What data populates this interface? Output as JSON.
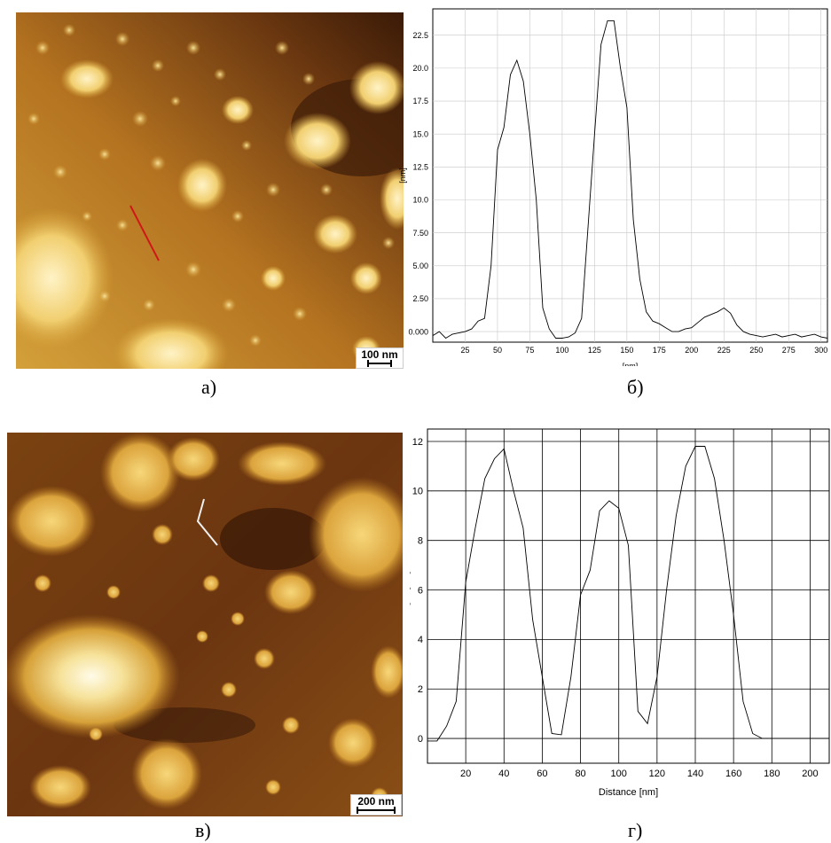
{
  "panels": {
    "a": {
      "caption": "а)",
      "scale_bar": "100 nm"
    },
    "b": {
      "caption": "б)"
    },
    "c": {
      "caption": "в)",
      "scale_bar": "200 nm"
    },
    "d": {
      "caption": "г)"
    }
  },
  "chart_data": [
    {
      "type": "line",
      "panel": "б",
      "xlabel": "[nm]",
      "ylabel": "[nm]",
      "xlim": [
        0,
        305
      ],
      "ylim": [
        -0.8,
        24.5
      ],
      "x_ticks": [
        "25",
        "50",
        "75",
        "100",
        "125",
        "150",
        "175",
        "200",
        "225",
        "250",
        "275",
        "300"
      ],
      "y_ticks": [
        "0.000",
        "2.50",
        "5.00",
        "7.50",
        "10.0",
        "12.5",
        "15.0",
        "17.5",
        "20.0",
        "22.5"
      ],
      "grid": true,
      "series": [
        {
          "x": [
            0,
            5,
            10,
            15,
            20,
            25,
            30,
            35,
            40,
            45,
            50,
            55,
            60,
            65,
            70,
            75,
            80,
            85,
            90,
            95,
            100,
            105,
            110,
            115,
            120,
            125,
            130,
            135,
            140,
            145,
            150,
            155,
            160,
            165,
            170,
            175,
            180,
            185,
            190,
            195,
            200,
            205,
            210,
            215,
            220,
            225,
            230,
            235,
            240,
            245,
            250,
            255,
            260,
            265,
            270,
            275,
            280,
            285,
            290,
            295,
            300,
            305
          ],
          "y": [
            -0.3,
            0,
            -0.5,
            -0.2,
            -0.1,
            0,
            0.2,
            0.8,
            1,
            5,
            13.8,
            15.5,
            19.5,
            20.6,
            19,
            15,
            10,
            1.8,
            0.2,
            -0.5,
            -0.5,
            -0.4,
            -0.1,
            1,
            8,
            15,
            21.8,
            23.6,
            23.6,
            20,
            17,
            8.5,
            4,
            1.5,
            0.8,
            0.6,
            0.3,
            0,
            0,
            0.2,
            0.3,
            0.7,
            1.1,
            1.3,
            1.5,
            1.8,
            1.4,
            0.5,
            0,
            -0.2,
            -0.3,
            -0.4,
            -0.3,
            -0.2,
            -0.4,
            -0.3,
            -0.2,
            -0.4,
            -0.3,
            -0.2,
            -0.4,
            -0.5
          ]
        }
      ]
    },
    {
      "type": "line",
      "panel": "г",
      "xlabel": "Distance [nm]",
      "ylabel": "Height [nm]",
      "xlim": [
        0,
        210
      ],
      "ylim": [
        -1,
        12.5
      ],
      "x_ticks": [
        "20",
        "40",
        "60",
        "80",
        "100",
        "120",
        "140",
        "160",
        "180",
        "200"
      ],
      "y_ticks": [
        "0",
        "2",
        "4",
        "6",
        "8",
        "10",
        "12"
      ],
      "grid": true,
      "series": [
        {
          "x": [
            0,
            5,
            10,
            15,
            20,
            25,
            30,
            35,
            40,
            45,
            50,
            55,
            60,
            65,
            70,
            75,
            80,
            85,
            90,
            95,
            100,
            105,
            110,
            115,
            120,
            125,
            130,
            135,
            140,
            145,
            150,
            155,
            160,
            165,
            170,
            175,
            180,
            185,
            190,
            195,
            200,
            205,
            210
          ],
          "y": [
            -0.1,
            -0.1,
            0.5,
            1.5,
            6.3,
            8.5,
            10.5,
            11.3,
            11.7,
            10,
            8.5,
            4.8,
            2.5,
            0.2,
            0.15,
            2.5,
            5.8,
            6.8,
            9.2,
            9.6,
            9.3,
            7.8,
            1.1,
            0.6,
            2.5,
            6,
            9,
            11,
            11.8,
            11.8,
            10.5,
            8,
            5,
            1.5,
            0.2,
            0,
            0,
            0,
            0,
            0,
            0,
            0,
            0
          ]
        }
      ]
    }
  ],
  "colors": {
    "afm_dark": "#3a1806",
    "afm_mid": "#b06a18",
    "afm_light": "#f0d27a",
    "afm_bright": "#fff6d8",
    "line_red": "#d01818",
    "line_white": "#f0f0f0"
  }
}
